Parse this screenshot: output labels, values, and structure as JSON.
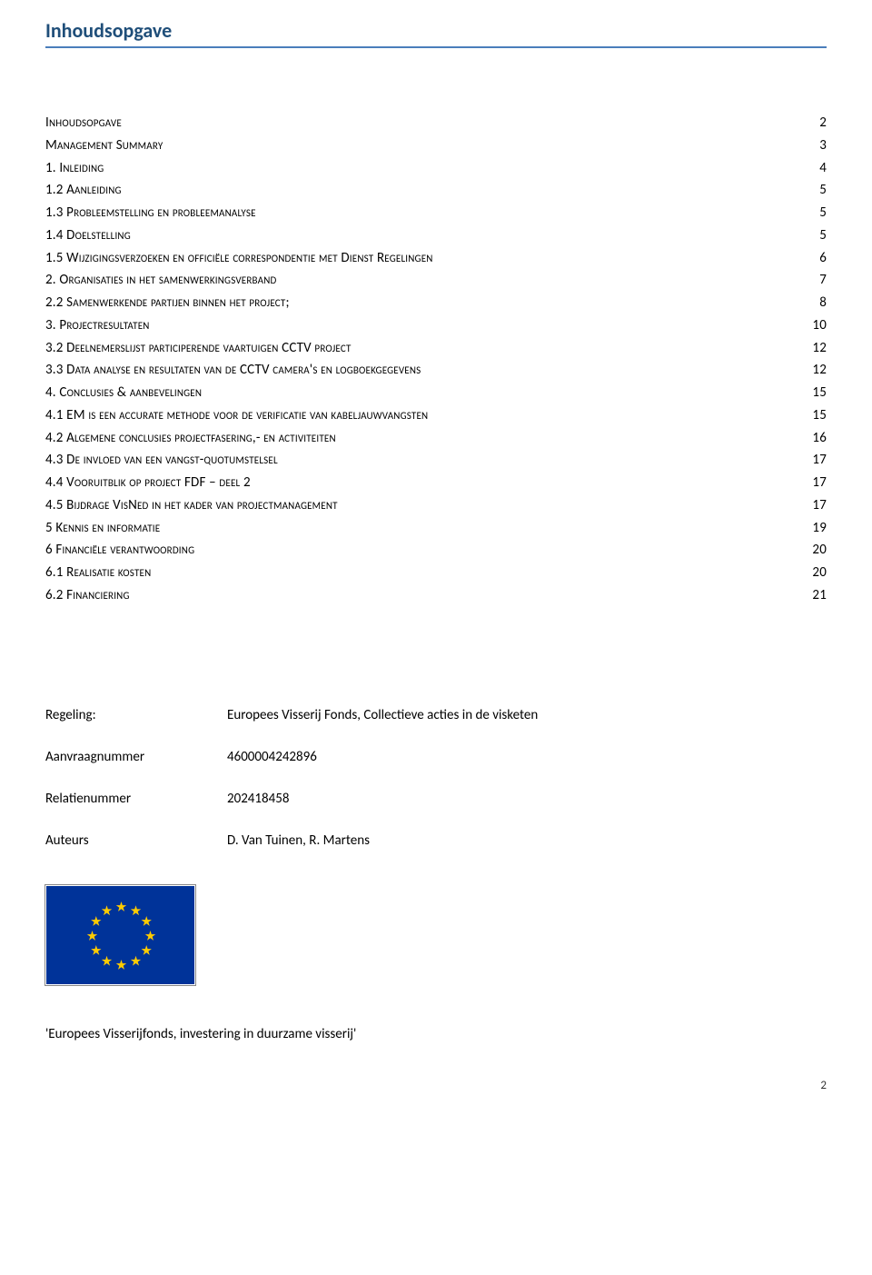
{
  "title": "Inhoudsopgave",
  "toc": [
    {
      "label": "Inhoudsopgave",
      "page": "2"
    },
    {
      "label": "Management Summary",
      "page": "3"
    },
    {
      "label": "1. Inleiding",
      "page": "4"
    },
    {
      "label": "1.2 Aanleiding",
      "page": "5"
    },
    {
      "label": "1.3 Probleemstelling en probleemanalyse",
      "page": "5"
    },
    {
      "label": "1.4 Doelstelling",
      "page": "5"
    },
    {
      "label": "1.5 Wijzigingsverzoeken en officiële correspondentie met Dienst Regelingen",
      "page": "6"
    },
    {
      "label": "2. Organisaties in het samenwerkingsverband",
      "page": "7"
    },
    {
      "label": "2.2 Samenwerkende partijen binnen het project;",
      "page": "8"
    },
    {
      "label": "3. Projectresultaten",
      "page": "10"
    },
    {
      "label": "3.2 Deelnemerslijst participerende vaartuigen CCTV project",
      "page": "12"
    },
    {
      "label": "3.3 Data analyse en resultaten van de CCTV camera's en logboekgegevens",
      "page": "12"
    },
    {
      "label": "4. Conclusies & aanbevelingen",
      "page": "15"
    },
    {
      "label": "4.1 EM is een accurate methode voor de verificatie van kabeljauwvangsten",
      "page": "15"
    },
    {
      "label": "4.2 Algemene conclusies projectfasering,- en activiteiten",
      "page": "16"
    },
    {
      "label": "4.3 De invloed van een vangst-quotumstelsel",
      "page": "17"
    },
    {
      "label": "4.4 Vooruitblik op project FDF – deel 2",
      "page": "17"
    },
    {
      "label": "4.5 Bijdrage VisNed in het kader van projectmanagement",
      "page": "17"
    },
    {
      "label": "5 Kennis en informatie",
      "page": "19"
    },
    {
      "label": "6 Financiële verantwoording",
      "page": "20"
    },
    {
      "label": "6.1 Realisatie kosten",
      "page": "20"
    },
    {
      "label": "6.2 Financiering",
      "page": "21"
    }
  ],
  "meta": {
    "regeling_key": "Regeling:",
    "regeling_val": "Europees Visserij Fonds, Collectieve acties in de visketen",
    "aanvraag_key": "Aanvraagnummer",
    "aanvraag_val": "4600004242896",
    "relatie_key": "Relatienummer",
    "relatie_val": "202418458",
    "auteurs_key": "Auteurs",
    "auteurs_val": "D. Van Tuinen, R. Martens"
  },
  "flag": {
    "bg_color": "#003399",
    "star_color": "#ffcc00"
  },
  "footer_quote": "'Europees Visserijfonds, investering in duurzame visserij'",
  "page_number": "2"
}
